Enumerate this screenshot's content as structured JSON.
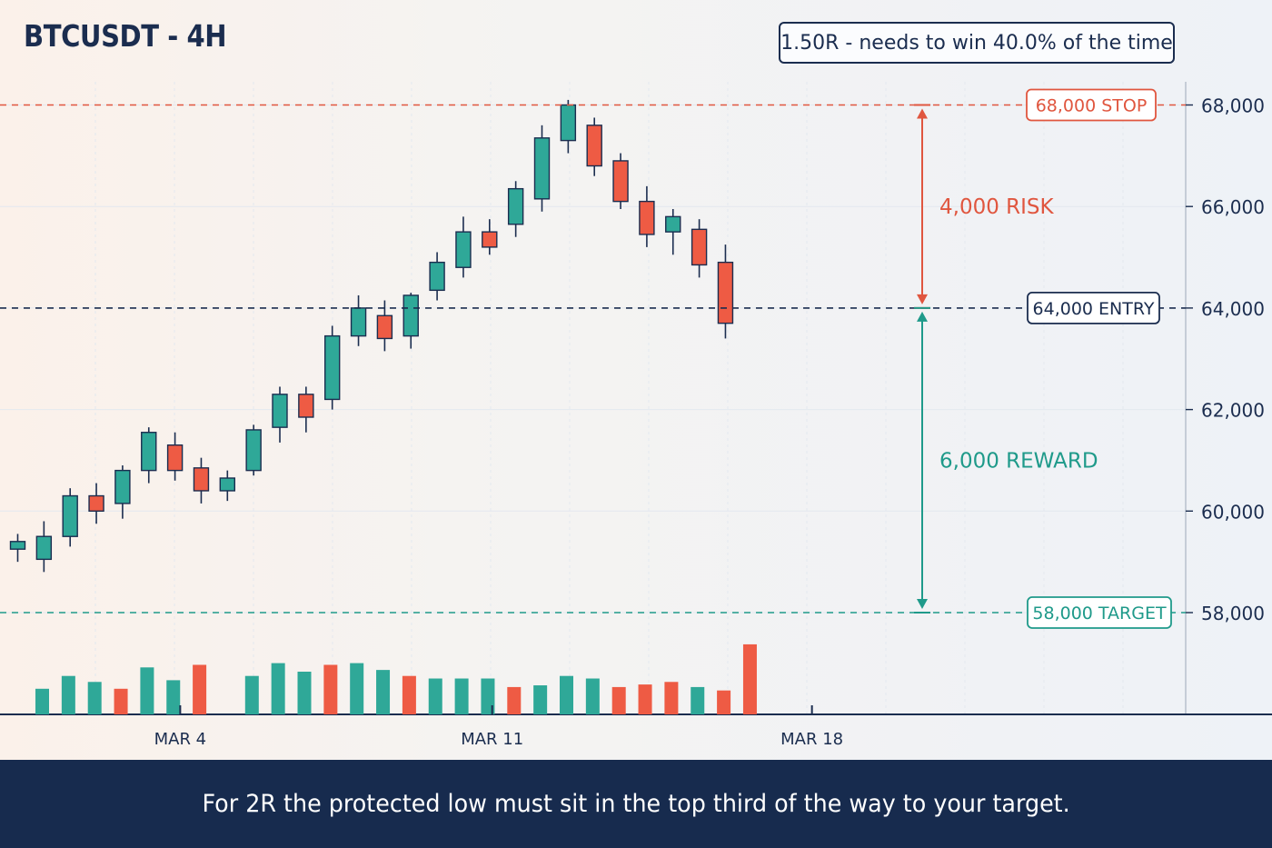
{
  "header": {
    "title": "BTCUSDT - 4H",
    "rr_summary": "1.50R - needs to win 40.0% of the time"
  },
  "levels": {
    "stop": {
      "price": 68000,
      "label": "68,000 STOP",
      "color": "#e0563f"
    },
    "entry": {
      "price": 64000,
      "label": "64,000 ENTRY",
      "color": "#1b2d4f"
    },
    "target": {
      "price": 58000,
      "label": "58,000 TARGET",
      "color": "#1f9a8a"
    }
  },
  "measures": {
    "risk": {
      "label": "4,000 RISK",
      "color": "#e0563f"
    },
    "reward": {
      "label": "6,000 REWARD",
      "color": "#1f9a8a"
    }
  },
  "caption": "For 2R the protected low must sit in the top third of the way to your target.",
  "colors": {
    "up": "#2fa898",
    "down": "#ee5b44",
    "outline": "#1b2d4f",
    "grid": "#e3e8ef"
  },
  "chart_data": {
    "type": "candlestick",
    "title": "BTCUSDT - 4H",
    "ylim": [
      56000,
      69000
    ],
    "y_ticks": [
      58000,
      60000,
      62000,
      64000,
      66000,
      68000
    ],
    "y_tick_labels": [
      "58,000",
      "60,000",
      "62,000",
      "64,000",
      "66,000",
      "68,000"
    ],
    "x_ticks": [
      "MAR 4",
      "MAR 11",
      "MAR 18"
    ],
    "x_tick_candle_index": [
      6.2,
      18.1,
      30.3
    ],
    "candles": [
      {
        "o": 59250,
        "h": 59550,
        "l": 59000,
        "c": 59400,
        "v": 0.3
      },
      {
        "o": 59050,
        "h": 59800,
        "l": 58800,
        "c": 59500,
        "v": 0.45
      },
      {
        "o": 59500,
        "h": 60450,
        "l": 59300,
        "c": 60300,
        "v": 0.38
      },
      {
        "o": 60300,
        "h": 60550,
        "l": 59750,
        "c": 60000,
        "v": 0.3
      },
      {
        "o": 60150,
        "h": 60900,
        "l": 59850,
        "c": 60800,
        "v": 0.55
      },
      {
        "o": 60800,
        "h": 61650,
        "l": 60550,
        "c": 61550,
        "v": 0.4
      },
      {
        "o": 61300,
        "h": 61550,
        "l": 60600,
        "c": 60800,
        "v": 0.58
      },
      {
        "o": 60850,
        "h": 61050,
        "l": 60150,
        "c": 60400,
        "v": 0.0
      },
      {
        "o": 60400,
        "h": 60800,
        "l": 60200,
        "c": 60650,
        "v": 0.45
      },
      {
        "o": 60800,
        "h": 61700,
        "l": 60700,
        "c": 61600,
        "v": 0.6
      },
      {
        "o": 61650,
        "h": 62450,
        "l": 61350,
        "c": 62300,
        "v": 0.5
      },
      {
        "o": 62300,
        "h": 62450,
        "l": 61550,
        "c": 61850,
        "v": 0.58
      },
      {
        "o": 62200,
        "h": 63650,
        "l": 62000,
        "c": 63450,
        "v": 0.6
      },
      {
        "o": 63450,
        "h": 64250,
        "l": 63250,
        "c": 64000,
        "v": 0.52
      },
      {
        "o": 63850,
        "h": 64150,
        "l": 63150,
        "c": 63400,
        "v": 0.45
      },
      {
        "o": 63450,
        "h": 64300,
        "l": 63200,
        "c": 64250,
        "v": 0.42
      },
      {
        "o": 64350,
        "h": 65100,
        "l": 64150,
        "c": 64900,
        "v": 0.42
      },
      {
        "o": 64800,
        "h": 65800,
        "l": 64600,
        "c": 65500,
        "v": 0.42
      },
      {
        "o": 65500,
        "h": 65750,
        "l": 65050,
        "c": 65200,
        "v": 0.32
      },
      {
        "o": 65650,
        "h": 66500,
        "l": 65400,
        "c": 66350,
        "v": 0.34
      },
      {
        "o": 66150,
        "h": 67600,
        "l": 65900,
        "c": 67350,
        "v": 0.45
      },
      {
        "o": 67300,
        "h": 68100,
        "l": 67050,
        "c": 68000,
        "v": 0.42
      },
      {
        "o": 67600,
        "h": 67750,
        "l": 66600,
        "c": 66800,
        "v": 0.32
      },
      {
        "o": 66900,
        "h": 67050,
        "l": 65950,
        "c": 66100,
        "v": 0.35
      },
      {
        "o": 66100,
        "h": 66400,
        "l": 65200,
        "c": 65450,
        "v": 0.38
      },
      {
        "o": 65500,
        "h": 65950,
        "l": 65050,
        "c": 65800,
        "v": 0.32
      },
      {
        "o": 65550,
        "h": 65750,
        "l": 64600,
        "c": 64850,
        "v": 0.28
      },
      {
        "o": 64900,
        "h": 65250,
        "l": 63400,
        "c": 63700,
        "v": 0.82
      }
    ]
  }
}
